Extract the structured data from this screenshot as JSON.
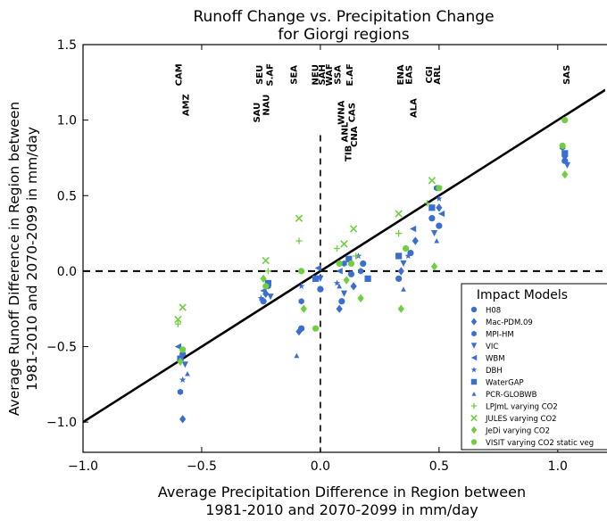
{
  "chart_data": {
    "type": "scatter",
    "title_line1": "Runoff Change vs. Precipitation Change",
    "title_line2": "for Giorgi regions",
    "xlabel_line1": "Average Precipitation Difference in Region between",
    "xlabel_line2": "1981-2010 and 2070-2099 in mm/day",
    "ylabel_line1": "Average Runoff Difference in Region between",
    "ylabel_line2": "1981-2010 and 2070-2099 in mm/day",
    "xlim": [
      -1.0,
      1.2
    ],
    "ylim": [
      -1.2,
      1.5
    ],
    "xticks": [
      -1.0,
      -0.5,
      0.0,
      0.5,
      1.0
    ],
    "xtick_labels": [
      "−1.0",
      "−0.5",
      "0.0",
      "0.5",
      "1.0"
    ],
    "yticks": [
      -1.0,
      -0.5,
      0.0,
      0.5,
      1.0,
      1.5
    ],
    "ytick_labels": [
      "−1.0",
      "−0.5",
      "0.0",
      "0.5",
      "1.0",
      "1.5"
    ],
    "reference_line": {
      "x": [
        -1.0,
        1.2
      ],
      "y": [
        -1.0,
        1.2
      ],
      "color": "#000000"
    },
    "legend": {
      "title": "Impact Models",
      "placement": "lower-right",
      "entries": [
        {
          "name": "H08",
          "marker": "circle",
          "color": "#3a6fd0"
        },
        {
          "name": "Mac-PDM.09",
          "marker": "diamond",
          "color": "#3a6fd0"
        },
        {
          "name": "MPI-HM",
          "marker": "hexagon",
          "color": "#3a6fd0"
        },
        {
          "name": "VIC",
          "marker": "triangle-down",
          "color": "#3a6fd0"
        },
        {
          "name": "WBM",
          "marker": "triangle-left",
          "color": "#3a6fd0"
        },
        {
          "name": "DBH",
          "marker": "star",
          "color": "#3a6fd0"
        },
        {
          "name": "WaterGAP",
          "marker": "square",
          "color": "#3a6fd0"
        },
        {
          "name": "PCR-GLOBWB",
          "marker": "triangle-up",
          "color": "#3a6fd0"
        },
        {
          "name": "LPJmL varying CO2",
          "marker": "plus",
          "color": "#6fcf3f"
        },
        {
          "name": "JULES varying CO2",
          "marker": "x",
          "color": "#6fcf3f"
        },
        {
          "name": "JeDi varying CO2",
          "marker": "diamond",
          "color": "#6fcf3f"
        },
        {
          "name": "VISIT varying CO2 static veg",
          "marker": "circle",
          "color": "#6fcf3f"
        }
      ]
    },
    "region_labels": [
      {
        "text": "CAM",
        "x": -0.585,
        "y": 1.3
      },
      {
        "text": "AMZ",
        "x": -0.555,
        "y": 1.1
      },
      {
        "text": "SEU",
        "x": -0.245,
        "y": 1.3
      },
      {
        "text": "S.AF",
        "x": -0.2,
        "y": 1.3
      },
      {
        "text": "NAU",
        "x": -0.215,
        "y": 1.1
      },
      {
        "text": "SAU",
        "x": -0.255,
        "y": 1.05
      },
      {
        "text": "SEA",
        "x": -0.1,
        "y": 1.3
      },
      {
        "text": "NEU",
        "x": -0.01,
        "y": 1.3
      },
      {
        "text": "SAH",
        "x": 0.02,
        "y": 1.3
      },
      {
        "text": "WAF",
        "x": 0.05,
        "y": 1.3
      },
      {
        "text": "SSA",
        "x": 0.085,
        "y": 1.3
      },
      {
        "text": "E.AF",
        "x": 0.135,
        "y": 1.3
      },
      {
        "text": "WNA",
        "x": 0.1,
        "y": 1.05
      },
      {
        "text": "CAS",
        "x": 0.145,
        "y": 1.05
      },
      {
        "text": "ANL",
        "x": 0.115,
        "y": 0.92
      },
      {
        "text": "CNA",
        "x": 0.155,
        "y": 0.89
      },
      {
        "text": "TIB",
        "x": 0.13,
        "y": 0.78
      },
      {
        "text": "ENA",
        "x": 0.35,
        "y": 1.3
      },
      {
        "text": "EAS",
        "x": 0.385,
        "y": 1.3
      },
      {
        "text": "ALA",
        "x": 0.405,
        "y": 1.08
      },
      {
        "text": "CGI",
        "x": 0.47,
        "y": 1.3
      },
      {
        "text": "ARL",
        "x": 0.505,
        "y": 1.3
      },
      {
        "text": "SAS",
        "x": 1.05,
        "y": 1.3
      }
    ],
    "series": [
      {
        "name": "H08",
        "points": [
          [
            -0.58,
            -0.55
          ],
          [
            -0.24,
            -0.2
          ],
          [
            -0.08,
            -0.38
          ],
          [
            0.0,
            -0.12
          ],
          [
            0.09,
            -0.2
          ],
          [
            0.13,
            -0.02
          ],
          [
            0.18,
            0.05
          ],
          [
            0.33,
            -0.05
          ],
          [
            0.38,
            0.12
          ],
          [
            0.47,
            0.35
          ],
          [
            0.5,
            0.3
          ],
          [
            1.03,
            0.73
          ]
        ]
      },
      {
        "name": "Mac-PDM.09",
        "points": [
          [
            -0.58,
            -0.98
          ],
          [
            -0.23,
            -0.15
          ],
          [
            -0.09,
            -0.4
          ],
          [
            0.08,
            -0.25
          ],
          [
            0.14,
            -0.1
          ],
          [
            0.34,
            0.0
          ],
          [
            0.4,
            0.2
          ],
          [
            0.5,
            0.42
          ],
          [
            1.03,
            0.76
          ]
        ]
      },
      {
        "name": "MPI-HM",
        "points": [
          [
            -0.59,
            -0.8
          ],
          [
            -0.22,
            -0.1
          ],
          [
            -0.08,
            -0.2
          ],
          [
            0.1,
            0.05
          ],
          [
            0.17,
            0.0
          ],
          [
            0.36,
            0.15
          ],
          [
            0.49,
            0.55
          ],
          [
            1.02,
            0.82
          ]
        ]
      },
      {
        "name": "VIC",
        "points": [
          [
            -0.57,
            -0.62
          ],
          [
            -0.21,
            -0.17
          ],
          [
            0.0,
            -0.05
          ],
          [
            0.1,
            -0.15
          ],
          [
            0.35,
            0.05
          ],
          [
            0.48,
            0.25
          ],
          [
            1.04,
            0.7
          ]
        ]
      },
      {
        "name": "WBM",
        "points": [
          [
            -0.6,
            -0.5
          ],
          [
            -0.24,
            -0.13
          ],
          [
            -0.01,
            0.02
          ],
          [
            0.08,
            0.0
          ],
          [
            0.39,
            0.28
          ],
          [
            0.51,
            0.38
          ]
        ]
      },
      {
        "name": "DBH",
        "points": [
          [
            -0.58,
            -0.72
          ],
          [
            -0.25,
            -0.18
          ],
          [
            -0.08,
            -0.1
          ],
          [
            0.07,
            -0.08
          ],
          [
            0.16,
            0.1
          ],
          [
            0.37,
            0.1
          ],
          [
            0.5,
            0.48
          ]
        ]
      },
      {
        "name": "WaterGAP",
        "points": [
          [
            -0.59,
            -0.58
          ],
          [
            -0.22,
            -0.08
          ],
          [
            -0.02,
            -0.05
          ],
          [
            0.12,
            0.08
          ],
          [
            0.2,
            -0.05
          ],
          [
            0.33,
            0.1
          ],
          [
            0.47,
            0.42
          ],
          [
            1.03,
            0.78
          ]
        ]
      },
      {
        "name": "PCR-GLOBWB",
        "points": [
          [
            -0.56,
            -0.68
          ],
          [
            -0.1,
            -0.56
          ],
          [
            0.08,
            -0.1
          ],
          [
            0.35,
            -0.12
          ],
          [
            0.49,
            0.2
          ]
        ]
      },
      {
        "name": "LPJmL varying CO2",
        "points": [
          [
            -0.6,
            -0.35
          ],
          [
            -0.22,
            0.0
          ],
          [
            -0.09,
            0.2
          ],
          [
            0.07,
            0.15
          ],
          [
            0.15,
            0.1
          ],
          [
            0.33,
            0.25
          ],
          [
            0.45,
            0.45
          ]
        ]
      },
      {
        "name": "JULES varying CO2",
        "points": [
          [
            -0.6,
            -0.32
          ],
          [
            -0.58,
            -0.24
          ],
          [
            -0.23,
            0.07
          ],
          [
            -0.09,
            0.35
          ],
          [
            0.1,
            0.18
          ],
          [
            0.14,
            0.28
          ],
          [
            0.33,
            0.38
          ],
          [
            0.47,
            0.6
          ]
        ]
      },
      {
        "name": "JeDi varying CO2",
        "points": [
          [
            -0.59,
            -0.6
          ],
          [
            -0.24,
            -0.05
          ],
          [
            -0.07,
            -0.25
          ],
          [
            0.11,
            -0.06
          ],
          [
            0.17,
            -0.18
          ],
          [
            0.34,
            -0.25
          ],
          [
            0.48,
            0.03
          ],
          [
            1.03,
            0.64
          ]
        ]
      },
      {
        "name": "VISIT varying CO2 static veg",
        "points": [
          [
            -0.58,
            -0.52
          ],
          [
            -0.23,
            -0.1
          ],
          [
            -0.08,
            0.0
          ],
          [
            -0.02,
            -0.38
          ],
          [
            0.08,
            0.05
          ],
          [
            0.13,
            0.05
          ],
          [
            0.36,
            0.15
          ],
          [
            0.5,
            0.55
          ],
          [
            1.03,
            1.0
          ],
          [
            1.02,
            0.83
          ]
        ]
      }
    ]
  }
}
